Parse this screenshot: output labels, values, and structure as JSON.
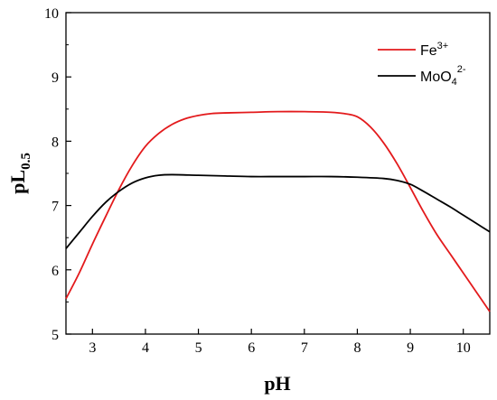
{
  "chart_data": {
    "type": "line",
    "xlabel": "pH",
    "ylabel_main": "pL",
    "ylabel_sub": "0.5",
    "xlim": [
      2.5,
      10.5
    ],
    "ylim": [
      5,
      10
    ],
    "xticks": [
      3,
      4,
      5,
      6,
      7,
      8,
      9,
      10
    ],
    "yticks": [
      5,
      6,
      7,
      8,
      9,
      10
    ],
    "grid": false,
    "legend_position": "top-right",
    "series": [
      {
        "legend_main": "Fe",
        "legend_sup": "3+",
        "legend_sub": "",
        "color": "#e31a1c",
        "x": [
          2.5,
          2.75,
          3.0,
          3.25,
          3.5,
          3.75,
          4.0,
          4.25,
          4.5,
          4.75,
          5.0,
          5.25,
          5.5,
          6.0,
          6.5,
          7.0,
          7.5,
          7.75,
          8.0,
          8.25,
          8.5,
          8.75,
          9.0,
          9.25,
          9.5,
          9.75,
          10.0,
          10.25,
          10.5
        ],
        "y": [
          5.55,
          5.95,
          6.4,
          6.83,
          7.25,
          7.62,
          7.92,
          8.12,
          8.26,
          8.35,
          8.4,
          8.43,
          8.44,
          8.45,
          8.46,
          8.46,
          8.45,
          8.43,
          8.38,
          8.22,
          7.97,
          7.65,
          7.28,
          6.9,
          6.55,
          6.25,
          5.95,
          5.65,
          5.35
        ]
      },
      {
        "legend_main": "MoO",
        "legend_sup": "2-",
        "legend_sub": "4",
        "color": "#000000",
        "x": [
          2.5,
          2.75,
          3.0,
          3.25,
          3.5,
          3.75,
          4.0,
          4.25,
          4.5,
          5.0,
          5.5,
          6.0,
          6.5,
          7.0,
          7.5,
          8.0,
          8.5,
          8.75,
          9.0,
          9.25,
          9.5,
          9.75,
          10.0,
          10.25,
          10.5
        ],
        "y": [
          6.33,
          6.58,
          6.83,
          7.05,
          7.22,
          7.35,
          7.43,
          7.47,
          7.48,
          7.47,
          7.46,
          7.45,
          7.45,
          7.45,
          7.45,
          7.44,
          7.42,
          7.39,
          7.33,
          7.22,
          7.1,
          6.98,
          6.85,
          6.72,
          6.59
        ]
      }
    ]
  }
}
